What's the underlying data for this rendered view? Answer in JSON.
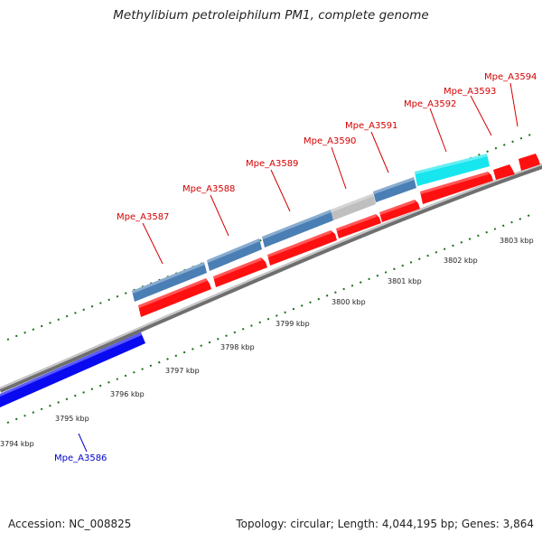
{
  "title": "Methylibium petroleiphilum PM1, complete genome",
  "footer": {
    "accession": "Accession: NC_008825",
    "summary": "Topology: circular; Length: 4,044,195 bp; Genes: 3,864"
  },
  "colors": {
    "backbone": "#8c8c8c",
    "reverse_gene": "#0a0af0",
    "forward_cds": "#ff1010",
    "steelblue_feature": "#4a7fb5",
    "grey_feature": "#bfbfbf",
    "cyan_feature": "#17e6ee",
    "tick": "#1a6e1a",
    "label_red": "#d40000",
    "label_blue": "#0000cc"
  },
  "scale_labels": [
    "3794 kbp",
    "3795 kbp",
    "3796 kbp",
    "3797 kbp",
    "3798 kbp",
    "3799 kbp",
    "3800 kbp",
    "3801 kbp",
    "3802 kbp",
    "3803 kbp"
  ],
  "genes": [
    {
      "name": "Mpe_A3586",
      "strand": "reverse",
      "color": "#0a0af0"
    },
    {
      "name": "Mpe_A3587",
      "strand": "forward",
      "color": "#ff1010"
    },
    {
      "name": "Mpe_A3588",
      "strand": "forward",
      "color": "#ff1010"
    },
    {
      "name": "Mpe_A3589",
      "strand": "forward",
      "color": "#ff1010"
    },
    {
      "name": "Mpe_A3590",
      "strand": "forward",
      "color": "#ff1010"
    },
    {
      "name": "Mpe_A3591",
      "strand": "forward",
      "color": "#ff1010"
    },
    {
      "name": "Mpe_A3592",
      "strand": "forward",
      "color": "#ff1010"
    },
    {
      "name": "Mpe_A3593",
      "strand": "forward",
      "color": "#ff1010"
    },
    {
      "name": "Mpe_A3594",
      "strand": "forward",
      "color": "#ff1010"
    }
  ]
}
